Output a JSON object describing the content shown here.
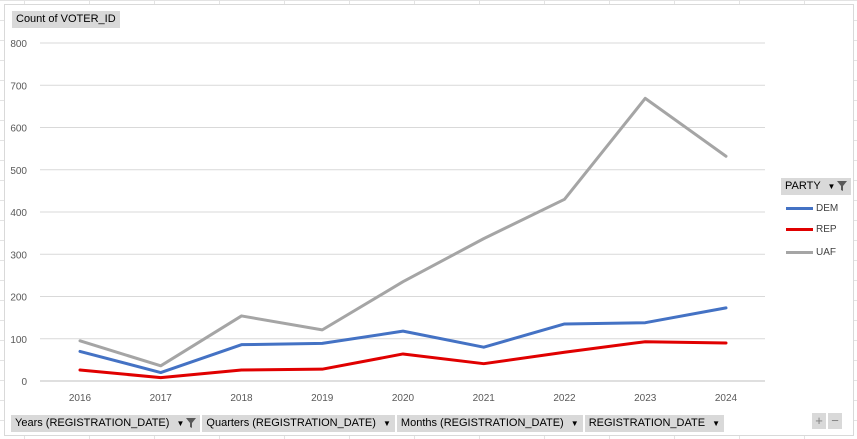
{
  "value_field_button": "Count of VOTER_ID",
  "legend_field_button": "PARTY",
  "axis_field_buttons": [
    "Years (REGISTRATION_DATE)",
    "Quarters (REGISTRATION_DATE)",
    "Months (REGISTRATION_DATE)",
    "REGISTRATION_DATE"
  ],
  "zoom_buttons": {
    "plus": "+",
    "minus": "−"
  },
  "chart_data": {
    "type": "line",
    "title": "",
    "xlabel": "",
    "ylabel": "",
    "categories": [
      "2016",
      "2017",
      "2018",
      "2019",
      "2020",
      "2021",
      "2022",
      "2023",
      "2024"
    ],
    "ylim": [
      0,
      800
    ],
    "yticks": [
      0,
      100,
      200,
      300,
      400,
      500,
      600,
      700,
      800
    ],
    "grid": true,
    "legend_position": "right",
    "series": [
      {
        "name": "DEM",
        "color": "#4472c4",
        "values": [
          70,
          20,
          86,
          89,
          118,
          80,
          135,
          138,
          173
        ]
      },
      {
        "name": "REP",
        "color": "#e00000",
        "values": [
          26,
          8,
          26,
          28,
          64,
          41,
          68,
          93,
          90
        ]
      },
      {
        "name": "UAF",
        "color": "#a5a5a5",
        "values": [
          95,
          36,
          154,
          121,
          235,
          337,
          430,
          669,
          532
        ]
      }
    ]
  }
}
